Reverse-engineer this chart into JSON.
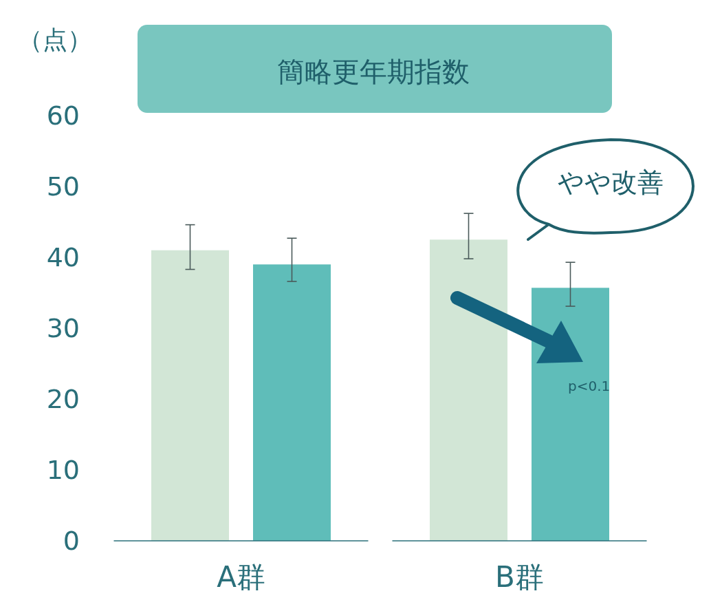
{
  "chart_data": {
    "type": "bar",
    "title": "簡略更年期指数",
    "ylabel": "（点）",
    "categories": [
      "A群",
      "B群"
    ],
    "series": [
      {
        "color": "#d2e6d6",
        "values": [
          41,
          42.5
        ],
        "errors": [
          [
            38.3,
            44.6
          ],
          [
            39.8,
            46.2
          ]
        ]
      },
      {
        "color": "#5fbdb9",
        "values": [
          39,
          35.7
        ],
        "errors": [
          [
            36.6,
            42.7
          ],
          [
            33.1,
            39.3
          ]
        ]
      }
    ],
    "ylim": [
      0,
      60
    ],
    "yticks": [
      0,
      10,
      20,
      30,
      40,
      50,
      60
    ],
    "grid": false,
    "legend": false,
    "annotations": [
      "やや改善",
      "p<0.1"
    ]
  }
}
